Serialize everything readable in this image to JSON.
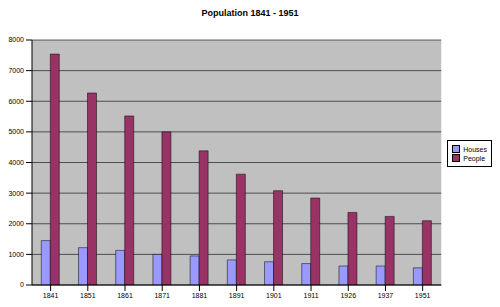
{
  "chart_data": {
    "type": "bar",
    "title": "Population 1841 - 1951",
    "categories": [
      "1841",
      "1851",
      "1861",
      "1871",
      "1881",
      "1891",
      "1901",
      "1911",
      "1926",
      "1937",
      "1951"
    ],
    "series": [
      {
        "name": "Houses",
        "color": "#9999ff",
        "values": [
          1450,
          1220,
          1130,
          1000,
          950,
          820,
          760,
          700,
          620,
          620,
          560
        ]
      },
      {
        "name": "People",
        "color": "#993366",
        "values": [
          7540,
          6270,
          5520,
          5000,
          4380,
          3620,
          3080,
          2840,
          2370,
          2240,
          2100
        ]
      }
    ],
    "ylim": [
      0,
      8000
    ],
    "yticks": [
      0,
      1000,
      2000,
      3000,
      4000,
      5000,
      6000,
      7000,
      8000
    ],
    "grid": true,
    "legend": "right"
  }
}
